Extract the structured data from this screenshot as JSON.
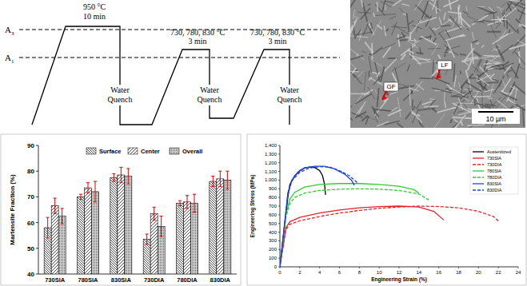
{
  "diagram": {
    "lines": [
      {
        "label": "A",
        "sub": "3"
      },
      {
        "label": "A",
        "sub": "1"
      }
    ],
    "steps": [
      {
        "temperature": "950 °C",
        "time": "10 min",
        "quench": [
          "Water",
          "Quench"
        ]
      },
      {
        "temperature": "730, 780, 830 °C",
        "time": "3 min",
        "quench": [
          "Water",
          "Quench"
        ]
      },
      {
        "temperature": "730, 780, 830 °C",
        "time": "3 min",
        "quench": [
          "Water",
          "Quench"
        ]
      }
    ]
  },
  "micrograph": {
    "labels": [
      "LF",
      "GF"
    ],
    "scale_bar": "10 µm"
  },
  "chart_data": [
    {
      "type": "bar",
      "y_label": "Martensite Fraction (%)",
      "categories": [
        "730SIA",
        "780SIA",
        "830SIA",
        "730DIA",
        "780DIA",
        "830DIA"
      ],
      "series": [
        {
          "name": "Surface",
          "values": [
            58,
            70,
            77.5,
            53.5,
            67.5,
            76
          ],
          "errors": [
            4,
            1,
            1.5,
            2,
            1,
            2
          ]
        },
        {
          "name": "Center",
          "values": [
            66.5,
            73.5,
            78.5,
            63.5,
            68,
            77
          ],
          "errors": [
            3,
            2,
            3,
            2.5,
            2.5,
            3
          ]
        },
        {
          "name": "Overall",
          "values": [
            62.5,
            72,
            78,
            58.5,
            67.5,
            76.5
          ],
          "errors": [
            3,
            4,
            3,
            4,
            3.5,
            3.5
          ]
        }
      ],
      "ylim": [
        40,
        90
      ],
      "yticks": [
        40,
        50,
        60,
        70,
        80,
        90
      ],
      "legend": "top",
      "grid": false
    },
    {
      "type": "line",
      "x_label": "Engineering Strain (%)",
      "y_label": "Engineering Stress (MPa)",
      "series": [
        {
          "name": "Austenitized",
          "color": "#000000",
          "line_style": "solid",
          "x": [
            0,
            0.8,
            1,
            1.5,
            2,
            2.5,
            3,
            3.5,
            4,
            4.3,
            4.5,
            4.6
          ],
          "values": [
            0,
            800,
            950,
            1050,
            1110,
            1140,
            1150,
            1145,
            1110,
            1050,
            950,
            830
          ]
        },
        {
          "name": "730SIA",
          "color": "#e8202a",
          "line_style": "solid",
          "x": [
            0,
            0.6,
            1,
            2,
            4,
            6,
            8,
            10,
            12,
            14,
            15.5,
            16.5
          ],
          "values": [
            0,
            450,
            520,
            570,
            620,
            655,
            680,
            695,
            700,
            690,
            640,
            540
          ]
        },
        {
          "name": "730DIA",
          "color": "#e8202a",
          "line_style": "dashed",
          "x": [
            0,
            0.6,
            1,
            2,
            4,
            6,
            8,
            10,
            12,
            14,
            16,
            18,
            20,
            21.5,
            22
          ],
          "values": [
            0,
            430,
            490,
            530,
            580,
            620,
            650,
            675,
            690,
            700,
            695,
            680,
            640,
            580,
            530
          ]
        },
        {
          "name": "780SIA",
          "color": "#2ecc2e",
          "line_style": "solid",
          "x": [
            0,
            0.6,
            1,
            1.5,
            2.5,
            4,
            6,
            8,
            10,
            12,
            13.5,
            14
          ],
          "values": [
            0,
            600,
            780,
            860,
            920,
            950,
            960,
            960,
            950,
            930,
            890,
            850
          ]
        },
        {
          "name": "780DIA",
          "color": "#2ecc2e",
          "line_style": "dashed",
          "x": [
            0,
            0.6,
            1,
            1.5,
            2.5,
            4,
            6,
            8,
            10,
            12,
            14,
            15
          ],
          "values": [
            0,
            570,
            730,
            800,
            850,
            880,
            895,
            900,
            895,
            880,
            840,
            770
          ]
        },
        {
          "name": "830SIA",
          "color": "#2040e0",
          "line_style": "solid",
          "x": [
            0,
            0.8,
            1.2,
            1.8,
            2.5,
            3.5,
            4.5,
            5.5,
            6.5,
            7.2,
            7.5
          ],
          "values": [
            0,
            850,
            1000,
            1090,
            1140,
            1160,
            1160,
            1130,
            1070,
            1000,
            940
          ]
        },
        {
          "name": "830DIA",
          "color": "#2040e0",
          "line_style": "dashed",
          "x": [
            0,
            0.8,
            1.2,
            2,
            3,
            4,
            5,
            6,
            7,
            7.8
          ],
          "values": [
            0,
            830,
            990,
            1090,
            1140,
            1155,
            1150,
            1110,
            1050,
            970
          ]
        }
      ],
      "xlim": [
        0,
        24
      ],
      "xticks": [
        0,
        2,
        4,
        6,
        8,
        10,
        12,
        14,
        16,
        18,
        20,
        22,
        24
      ],
      "ylim": [
        0,
        1400
      ],
      "yticks": [
        0,
        100,
        200,
        300,
        400,
        500,
        600,
        700,
        800,
        900,
        {
          "value": 1000,
          "label": "1,000"
        },
        {
          "value": 1100,
          "label": "1,100"
        },
        {
          "value": 1200,
          "label": "1,200"
        },
        {
          "value": 1300,
          "label": "1,300"
        },
        {
          "value": 1400,
          "label": "1,400"
        }
      ],
      "legend": "top-right",
      "grid": false
    }
  ]
}
